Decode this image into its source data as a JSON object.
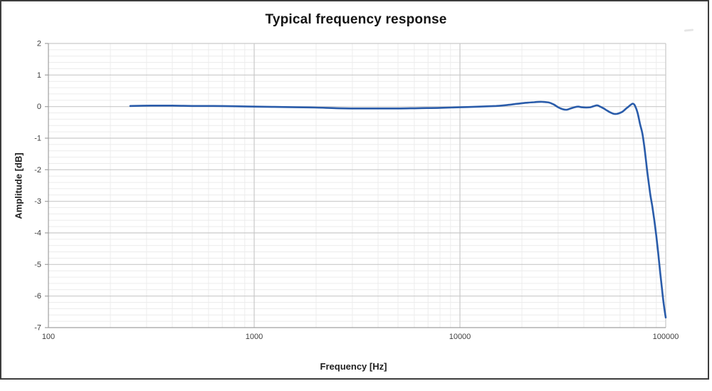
{
  "chart_data": {
    "type": "line",
    "title": "Typical frequency response",
    "xlabel": "Frequency [Hz]",
    "ylabel": "Amplitude [dB]",
    "x_scale": "log",
    "xlim": [
      100,
      100000
    ],
    "ylim": [
      -7,
      2
    ],
    "x_ticks": [
      100,
      1000,
      10000,
      100000
    ],
    "x_tick_labels": [
      "100",
      "1000",
      "10000",
      "100000"
    ],
    "y_ticks": [
      2,
      1,
      0,
      -1,
      -2,
      -3,
      -4,
      -5,
      -6,
      -7
    ],
    "y_tick_labels": [
      "2",
      "1",
      "0",
      "-1",
      "-2",
      "-3",
      "-4",
      "-5",
      "-6",
      "-7"
    ],
    "y_minor_step": 0.2,
    "grid": "major+minor",
    "legend": "none",
    "colors": {
      "line": "#2a5caa",
      "major_grid": "#c9c9c9",
      "minor_grid": "#ececec",
      "axis": "#a0a0a0",
      "frame_border": "#3d3d3d"
    },
    "series": [
      {
        "name": "frequency-response",
        "color": "#2a5caa",
        "points": [
          [
            250,
            0.02
          ],
          [
            315,
            0.03
          ],
          [
            400,
            0.03
          ],
          [
            500,
            0.02
          ],
          [
            630,
            0.02
          ],
          [
            800,
            0.01
          ],
          [
            1000,
            0.0
          ],
          [
            1250,
            -0.01
          ],
          [
            1600,
            -0.02
          ],
          [
            2000,
            -0.03
          ],
          [
            2500,
            -0.05
          ],
          [
            3150,
            -0.06
          ],
          [
            4000,
            -0.06
          ],
          [
            5000,
            -0.06
          ],
          [
            6300,
            -0.05
          ],
          [
            8000,
            -0.04
          ],
          [
            10000,
            -0.02
          ],
          [
            12500,
            0.0
          ],
          [
            15000,
            0.02
          ],
          [
            17000,
            0.05
          ],
          [
            19000,
            0.09
          ],
          [
            21000,
            0.12
          ],
          [
            23000,
            0.14
          ],
          [
            25000,
            0.15
          ],
          [
            27000,
            0.13
          ],
          [
            28500,
            0.07
          ],
          [
            30000,
            -0.02
          ],
          [
            31500,
            -0.08
          ],
          [
            33000,
            -0.1
          ],
          [
            34500,
            -0.06
          ],
          [
            36000,
            -0.02
          ],
          [
            37500,
            0.0
          ],
          [
            39000,
            -0.02
          ],
          [
            41000,
            -0.03
          ],
          [
            43000,
            -0.02
          ],
          [
            45000,
            0.02
          ],
          [
            46500,
            0.04
          ],
          [
            48000,
            0.0
          ],
          [
            50000,
            -0.06
          ],
          [
            52000,
            -0.13
          ],
          [
            54000,
            -0.19
          ],
          [
            56000,
            -0.23
          ],
          [
            58000,
            -0.23
          ],
          [
            60000,
            -0.2
          ],
          [
            62000,
            -0.15
          ],
          [
            64000,
            -0.07
          ],
          [
            66000,
            0.0
          ],
          [
            68000,
            0.07
          ],
          [
            69500,
            0.09
          ],
          [
            71000,
            0.02
          ],
          [
            73000,
            -0.2
          ],
          [
            75000,
            -0.55
          ],
          [
            77000,
            -0.85
          ],
          [
            79000,
            -1.35
          ],
          [
            81500,
            -2.1
          ],
          [
            84000,
            -2.75
          ],
          [
            86000,
            -3.15
          ],
          [
            88000,
            -3.6
          ],
          [
            90000,
            -4.1
          ],
          [
            92000,
            -4.65
          ],
          [
            94000,
            -5.25
          ],
          [
            96000,
            -5.8
          ],
          [
            98000,
            -6.3
          ],
          [
            100000,
            -6.68
          ]
        ]
      }
    ]
  }
}
